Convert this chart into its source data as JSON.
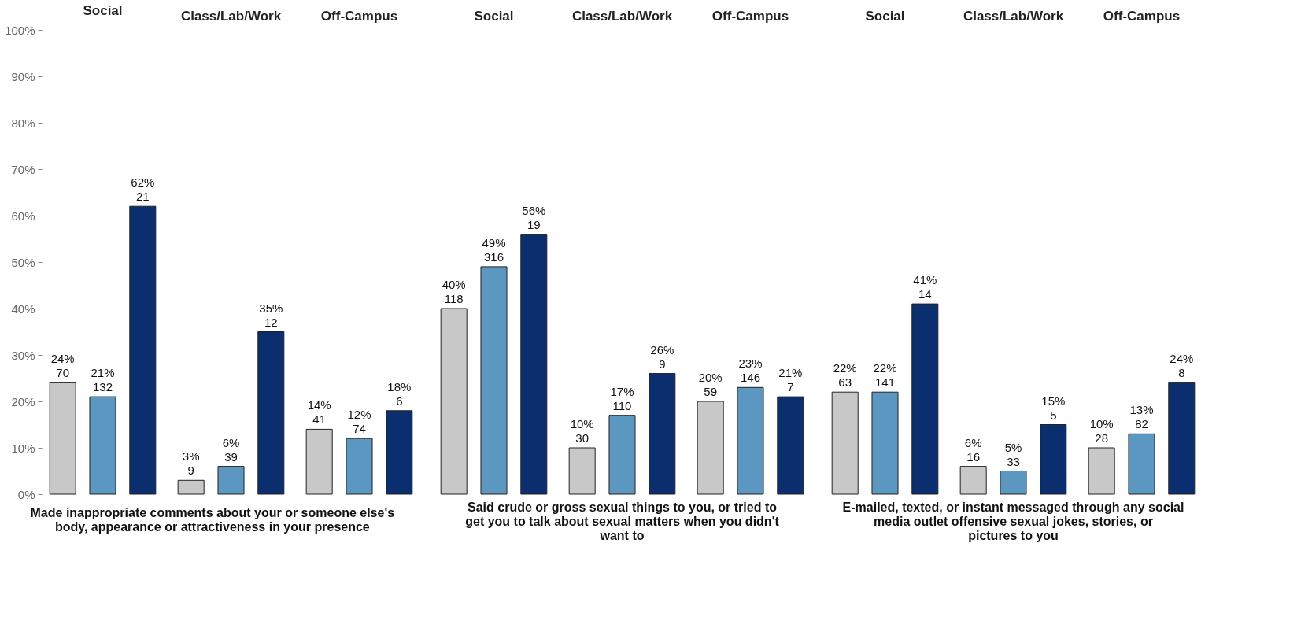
{
  "chart_data": [
    {
      "type": "bar",
      "categories": [
        "Social",
        "Class/Lab/Work",
        "Off-Campus"
      ],
      "xlabel": "Made inappropriate comments about your or someone else's body, appearance or attractiveness in your presence",
      "ylim": [
        0,
        100
      ],
      "yticks": [
        {
          "value": 0,
          "label": "0%"
        },
        {
          "value": 10,
          "label": "10%"
        },
        {
          "value": 20,
          "label": "20%"
        },
        {
          "value": 30,
          "label": "30%"
        },
        {
          "value": 40,
          "label": "40%"
        },
        {
          "value": 50,
          "label": "50%"
        },
        {
          "value": 60,
          "label": "60%"
        },
        {
          "value": 70,
          "label": "70%"
        },
        {
          "value": 80,
          "label": "80%"
        },
        {
          "value": 90,
          "label": "90%"
        },
        {
          "value": 100,
          "label": "100%"
        }
      ],
      "series": [
        {
          "color": "#c8c8c8",
          "values": [
            24,
            3,
            14
          ],
          "value_labels": [
            "24%\n70",
            "3%\n9",
            "14%\n41"
          ]
        },
        {
          "color": "#5b97c1",
          "values": [
            21,
            6,
            12
          ],
          "value_labels": [
            "21%\n132",
            "6%\n39",
            "12%\n74"
          ]
        },
        {
          "color": "#0b2f6e",
          "values": [
            62,
            35,
            18
          ],
          "value_labels": [
            "62%\n21",
            "35%\n12",
            "18%\n6"
          ]
        }
      ]
    },
    {
      "type": "bar",
      "categories": [
        "Social",
        "Class/Lab/Work",
        "Off-Campus"
      ],
      "xlabel": "Said crude or gross sexual things to you, or tried to get you to talk about sexual matters when you didn't want to",
      "ylim": [
        0,
        100
      ],
      "tick_labels": "x",
      "series": [
        {
          "color": "#c8c8c8",
          "values": [
            40,
            10,
            20
          ],
          "value_labels": [
            "40%\n118",
            "10%\n30",
            "20%\n59"
          ]
        },
        {
          "color": "#5b97c1",
          "values": [
            49,
            17,
            23
          ],
          "value_labels": [
            "49%\n316",
            "17%\n110",
            "23%\n146"
          ]
        },
        {
          "color": "#0b2f6e",
          "values": [
            56,
            26,
            21
          ],
          "value_labels": [
            "56%\n19",
            "26%\n9",
            "21%\n7"
          ]
        }
      ]
    },
    {
      "type": "bar",
      "categories": [
        "Social",
        "Class/Lab/Work",
        "Off-Campus"
      ],
      "xlabel": "E-mailed, texted, or instant messaged through any social media outlet offensive sexual jokes, stories, or pictures to you",
      "ylim": [
        0,
        100
      ],
      "tick_labels": "x",
      "series": [
        {
          "color": "#c8c8c8",
          "values": [
            22,
            6,
            10
          ],
          "value_labels": [
            "22%\n63",
            "6%\n16",
            "10%\n28"
          ]
        },
        {
          "color": "#5b97c1",
          "values": [
            22,
            5,
            13
          ],
          "value_labels": [
            "22%\n141",
            "5%\n33",
            "13%\n82"
          ]
        },
        {
          "color": "#0b2f6e",
          "values": [
            41,
            15,
            24
          ],
          "value_labels": [
            "41%\n14",
            "15%\n5",
            "24%\n8"
          ]
        }
      ]
    }
  ]
}
